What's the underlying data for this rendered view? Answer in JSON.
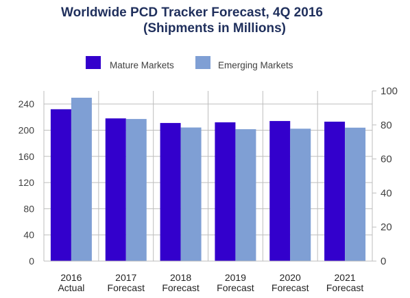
{
  "chart_data": {
    "type": "bar",
    "title_lines": [
      "Worldwide PCD Tracker Forecast, 4Q 2016",
      "(Shipments in Millions)"
    ],
    "categories": [
      [
        "2016",
        "Actual"
      ],
      [
        "2017",
        "Forecast"
      ],
      [
        "2018",
        "Forecast"
      ],
      [
        "2019",
        "Forecast"
      ],
      [
        "2020",
        "Forecast"
      ],
      [
        "2021",
        "Forecast"
      ]
    ],
    "series": [
      {
        "name": "Mature Markets",
        "color": "#3300cc",
        "axis": "left",
        "values": [
          232,
          218,
          211,
          212,
          214,
          213
        ]
      },
      {
        "name": "Emerging Markets",
        "color": "#7f9fd4",
        "axis": "right",
        "values": [
          96,
          83.5,
          78.5,
          77.5,
          77.8,
          78.4
        ]
      }
    ],
    "left_axis": {
      "ticks": [
        "0",
        "40",
        "80",
        "120",
        "160",
        "200",
        "240"
      ],
      "ylim": [
        0,
        260
      ]
    },
    "right_axis": {
      "ticks": [
        "0",
        "20",
        "40",
        "60",
        "80",
        "100"
      ],
      "ylim": [
        0,
        100
      ]
    },
    "grid": true,
    "legend_position": "top-center"
  }
}
